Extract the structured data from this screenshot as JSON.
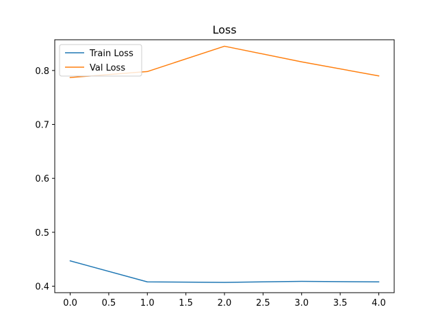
{
  "chart_data": {
    "type": "line",
    "title": "Loss",
    "xlabel": "",
    "ylabel": "",
    "x": [
      0,
      1,
      2,
      3,
      4
    ],
    "xlim": [
      -0.2,
      4.2
    ],
    "ylim": [
      0.388,
      0.857
    ],
    "xticks": [
      0,
      0.5,
      1,
      1.5,
      2,
      2.5,
      3,
      3.5,
      4
    ],
    "xtick_labels": [
      "0.0",
      "0.5",
      "1.0",
      "1.5",
      "2.0",
      "2.5",
      "3.0",
      "3.5",
      "4.0"
    ],
    "yticks": [
      0.4,
      0.5,
      0.6,
      0.7,
      0.8
    ],
    "ytick_labels": [
      "0.4",
      "0.5",
      "0.6",
      "0.7",
      "0.8"
    ],
    "grid": false,
    "legend_position": "top-left",
    "series": [
      {
        "name": "Train Loss",
        "color": "#1f77b4",
        "values": [
          0.447,
          0.408,
          0.407,
          0.409,
          0.408
        ]
      },
      {
        "name": "Val Loss",
        "color": "#ff7f0e",
        "values": [
          0.787,
          0.798,
          0.845,
          0.816,
          0.79
        ]
      }
    ]
  }
}
